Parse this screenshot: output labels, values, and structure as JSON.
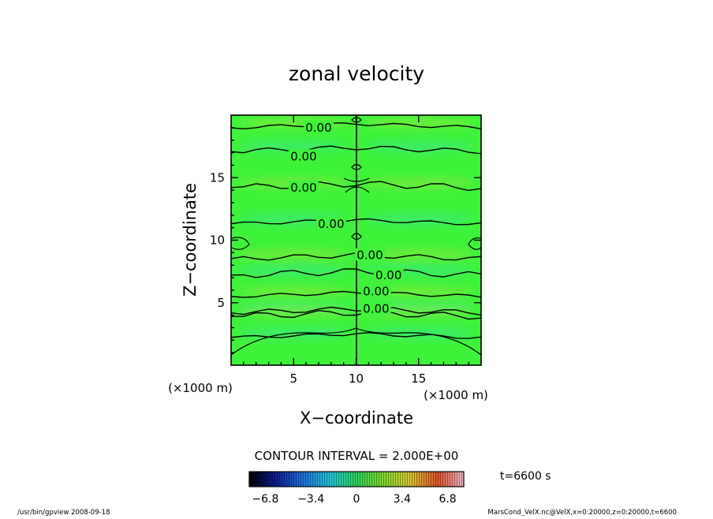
{
  "chart_data": {
    "type": "heatmap",
    "title": "zonal velocity",
    "xlabel": "X−coordinate",
    "ylabel": "Z−coordinate",
    "xunits": "(×1000 m)",
    "yunits": "(×1000 m)",
    "xlim": [
      0,
      20
    ],
    "ylim": [
      0,
      20
    ],
    "x_ticks": [
      5,
      10,
      15
    ],
    "y_ticks": [
      5,
      10,
      15
    ],
    "x_tick_labels": [
      "5",
      "10",
      "15"
    ],
    "y_tick_labels": [
      "5",
      "10",
      "15"
    ],
    "contour_interval_text": "CONTOUR INTERVAL = 2.000E+00",
    "contour_label": "0.00",
    "contour_levels_z": [
      19.0,
      17.1,
      14.2,
      11.3,
      8.5,
      7.2,
      5.5,
      4.2,
      3.9,
      2.2
    ],
    "zero_contour_labels": [
      {
        "x": 7.0,
        "z": 19.0
      },
      {
        "x": 5.8,
        "z": 16.7
      },
      {
        "x": 5.8,
        "z": 14.2
      },
      {
        "x": 8.0,
        "z": 11.3
      },
      {
        "x": 11.1,
        "z": 8.8
      },
      {
        "x": 12.6,
        "z": 7.2
      },
      {
        "x": 11.6,
        "z": 5.9
      },
      {
        "x": 11.6,
        "z": 4.5
      }
    ],
    "colorbar": {
      "min": -8.0,
      "max": 8.0,
      "tick_values": [
        -6.8,
        -3.4,
        0,
        3.4,
        6.8
      ],
      "tick_labels": [
        "−6.8",
        "−3.4",
        "0",
        "3.4",
        "6.8"
      ]
    },
    "time_label": "t=6600 s",
    "colors": {
      "field_base": "#3ef23a",
      "field_light": "#8ee83a",
      "field_cool": "#3de690",
      "contour": "#000000"
    }
  },
  "footer": {
    "left": "/usr/bin/gpview   2008-09-18",
    "right": "MarsCond_VelX.nc@VelX,x=0:20000,z=0:20000,t=6600"
  }
}
